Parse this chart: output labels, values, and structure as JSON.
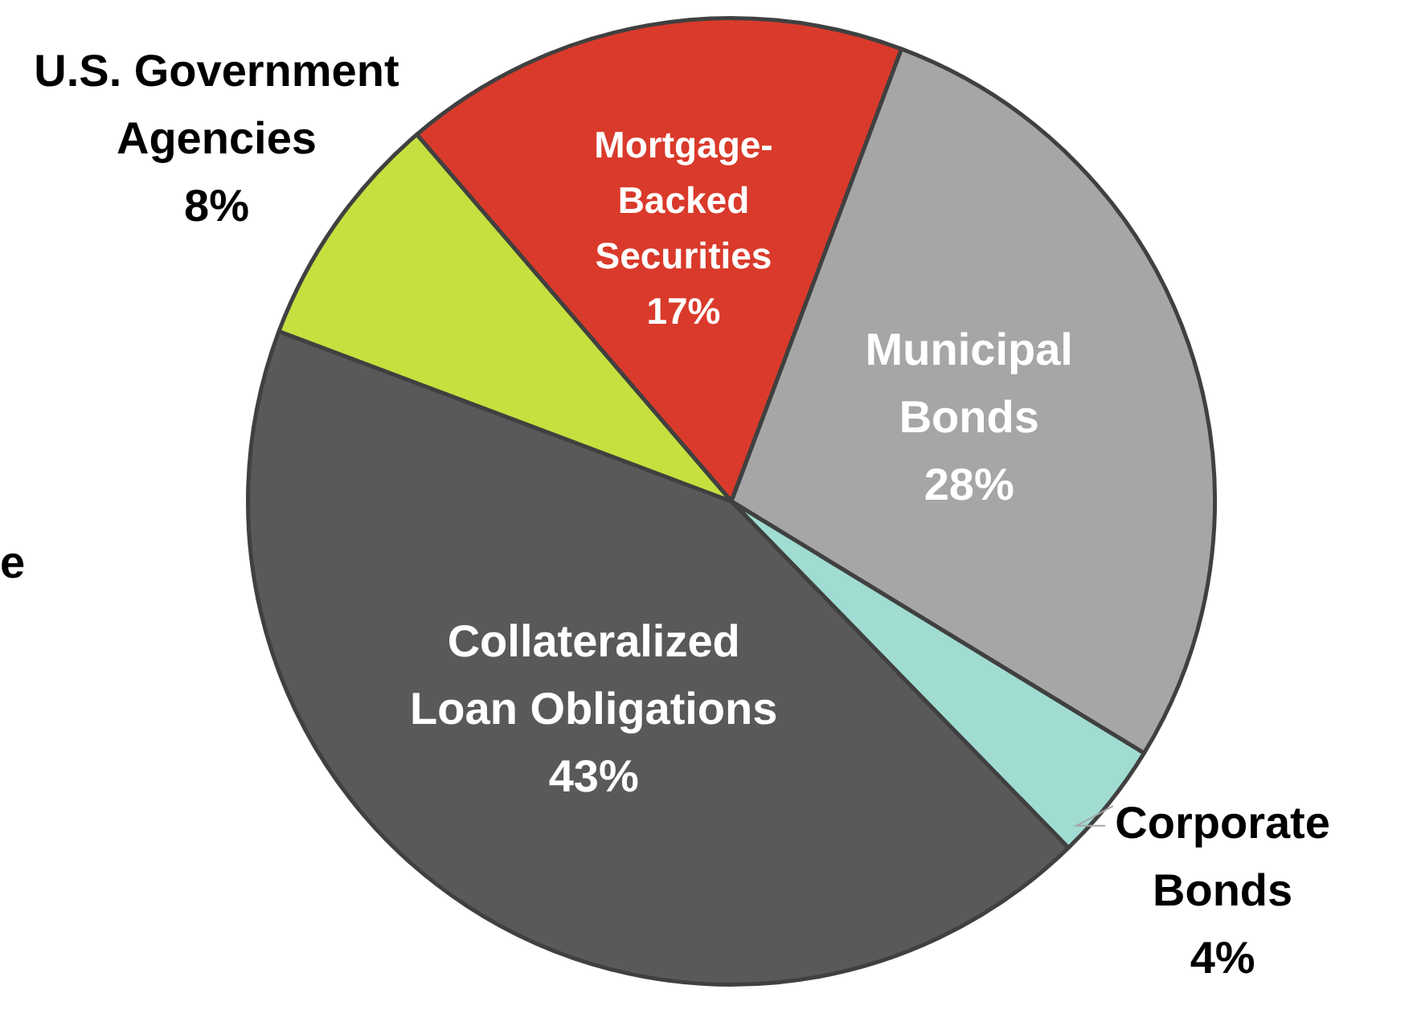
{
  "chart_data": {
    "type": "pie",
    "categories": [
      "Mortgage-\nBacked\nSecurities",
      "Municipal\nBonds",
      "Corporate\nBonds",
      "Collateralized\nLoan Obligations",
      "U.S. Government\nAgencies"
    ],
    "values": [
      17,
      28,
      4,
      43,
      8
    ],
    "colors": [
      "#d93a2b",
      "#a6a6a6",
      "#a0dcd2",
      "#595959",
      "#c5e03f"
    ],
    "value_labels": [
      "17%",
      "28%",
      "4%",
      "43%",
      "8%"
    ],
    "legend": false,
    "annotations": [
      "e"
    ]
  }
}
